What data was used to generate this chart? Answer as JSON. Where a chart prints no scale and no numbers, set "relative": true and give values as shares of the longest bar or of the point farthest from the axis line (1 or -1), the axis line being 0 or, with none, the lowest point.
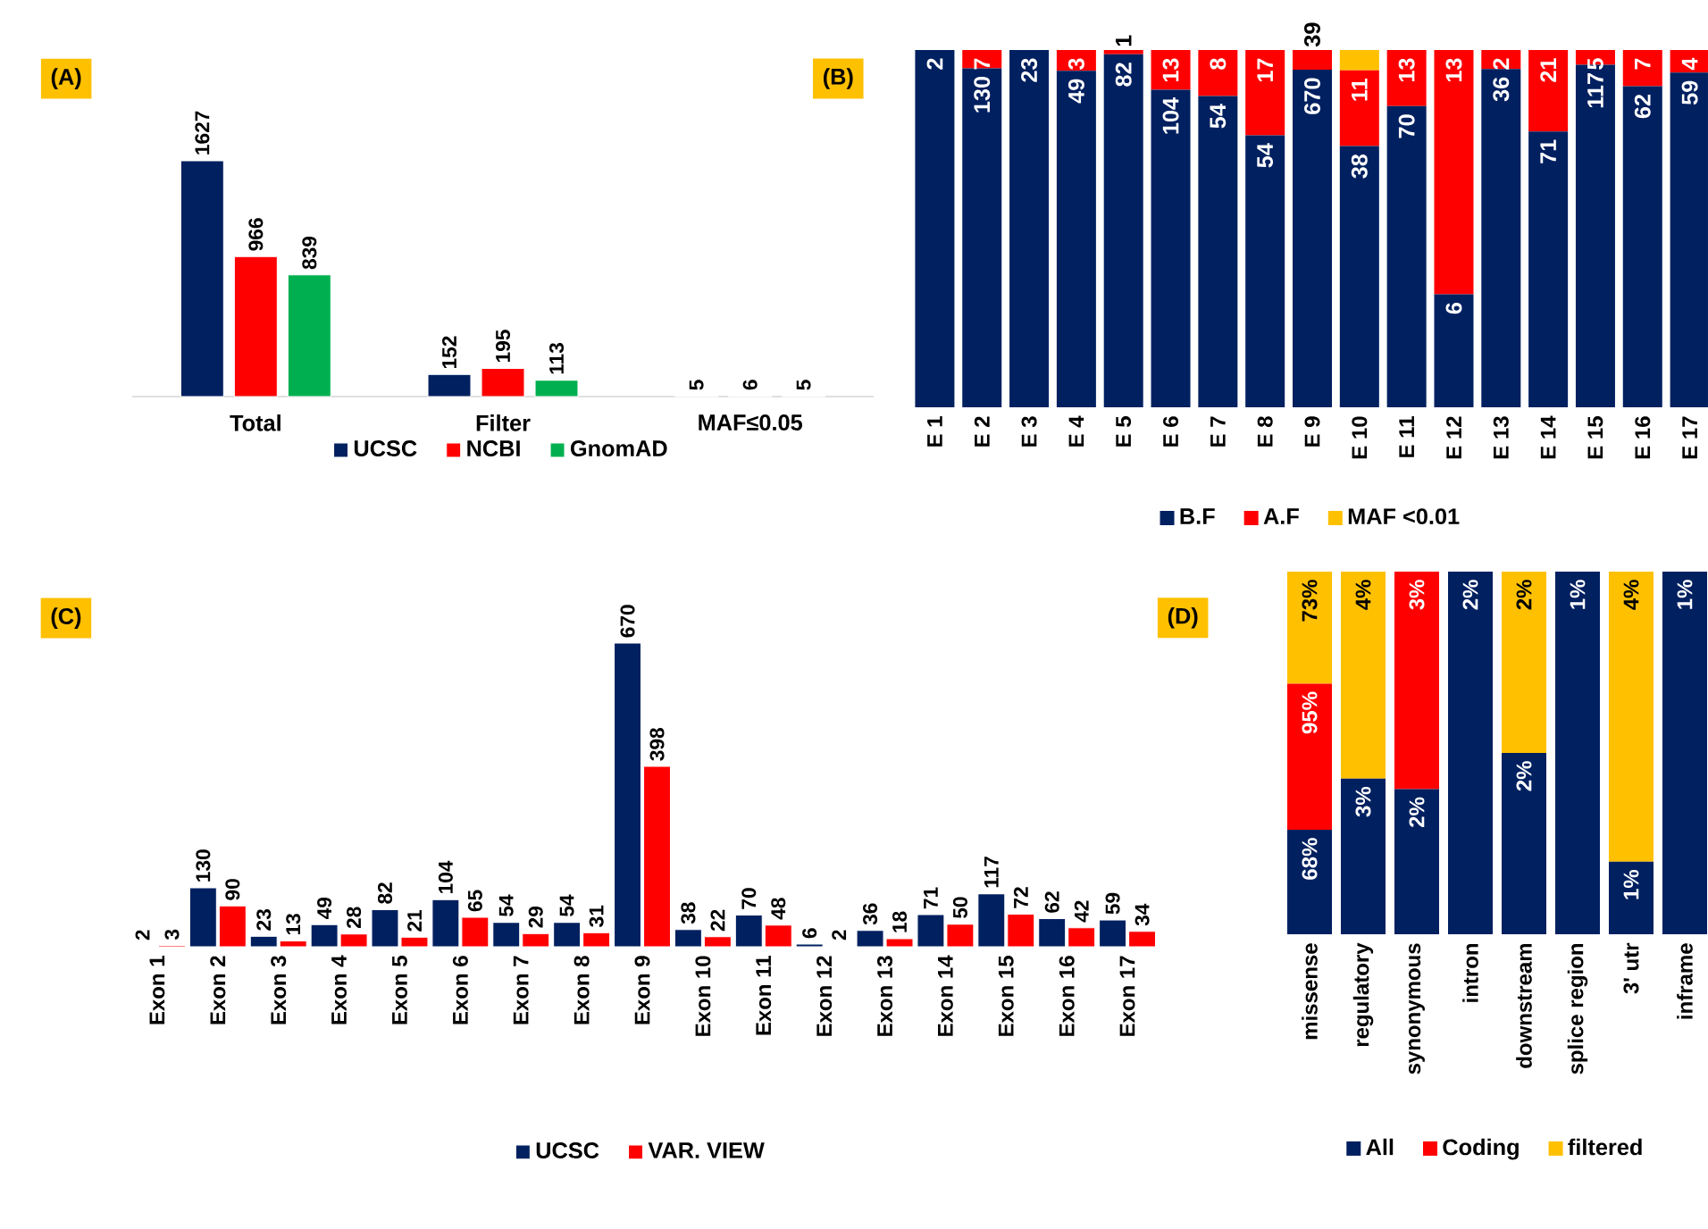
{
  "chart_data": [
    {
      "type": "bar",
      "title": "(A)",
      "categories": [
        "Total",
        "Filter",
        "MAF≤0.05"
      ],
      "data_labels": true,
      "legend": "bottom",
      "series": [
        {
          "name": "UCSC",
          "color": "#002060",
          "values": [
            1627,
            152,
            5
          ]
        },
        {
          "name": "NCBI",
          "color": "#ff0000",
          "values": [
            966,
            195,
            6
          ]
        },
        {
          "name": "GnomAD",
          "color": "#00b050",
          "values": [
            839,
            113,
            5
          ]
        }
      ]
    },
    {
      "type": "bar",
      "title": "(B)",
      "stacked": true,
      "relative": true,
      "legend": "bottom",
      "categories": [
        "E 1",
        "E 2",
        "E 3",
        "E 4",
        "E 5",
        "E 6",
        "E 7",
        "E 8",
        "E 9",
        "E 10",
        "E 11",
        "E 12",
        "E 13",
        "E 14",
        "E 15",
        "E 16",
        "E 17"
      ],
      "series": [
        {
          "name": "B.F",
          "color": "#002060",
          "values": [
            1,
            0.949,
            1,
            0.942,
            0.988,
            0.889,
            0.871,
            0.761,
            0.945,
            0.731,
            0.843,
            0.316,
            0.947,
            0.772,
            0.959,
            0.899,
            0.937
          ]
        },
        {
          "name": "A.F",
          "color": "#ff0000",
          "values": [
            null,
            0.051,
            null,
            0.058,
            0.012,
            0.111,
            0.129,
            0.239,
            0.055,
            0.212,
            0.157,
            0.684,
            0.053,
            0.228,
            0.041,
            0.101,
            0.063
          ]
        },
        {
          "name": "MAF <0.01",
          "color": "#ffc000",
          "values": [
            null,
            null,
            null,
            null,
            null,
            null,
            null,
            null,
            null,
            0.057,
            null,
            null,
            null,
            null,
            null,
            null,
            null
          ]
        }
      ],
      "annotations": [
        {
          "text": "2",
          "x": "E 1",
          "y": 1
        },
        {
          "text": "130",
          "x": "E 2",
          "y": 0.949
        },
        {
          "text": "7",
          "x": "E 2",
          "y": 1
        },
        {
          "text": "23",
          "x": "E 3",
          "y": 1
        },
        {
          "text": "49",
          "x": "E 4",
          "y": 0.942
        },
        {
          "text": "3",
          "x": "E 4",
          "y": 1
        },
        {
          "text": "82",
          "x": "E 5",
          "y": 0.988
        },
        {
          "text": "1",
          "x": "E 5",
          "y": 1
        },
        {
          "text": "104",
          "x": "E 6",
          "y": 0.889
        },
        {
          "text": "13",
          "x": "E 6",
          "y": 1
        },
        {
          "text": "54",
          "x": "E 7",
          "y": 0.871
        },
        {
          "text": "8",
          "x": "E 7",
          "y": 1
        },
        {
          "text": "54",
          "x": "E 8",
          "y": 0.761
        },
        {
          "text": "17",
          "x": "E 8",
          "y": 1
        },
        {
          "text": "670",
          "x": "E 9",
          "y": 0.945
        },
        {
          "text": "39",
          "x": "E 9",
          "y": 1
        },
        {
          "text": "38",
          "x": "E 10",
          "y": 0.731
        },
        {
          "text": "11",
          "x": "E 10",
          "y": 0.943
        },
        {
          "text": "70",
          "x": "E 11",
          "y": 0.843
        },
        {
          "text": "13",
          "x": "E 11",
          "y": 1
        },
        {
          "text": "6",
          "x": "E 12",
          "y": 0.316
        },
        {
          "text": "13",
          "x": "E 12",
          "y": 1
        },
        {
          "text": "36",
          "x": "E 13",
          "y": 0.947
        },
        {
          "text": "2",
          "x": "E 13",
          "y": 1
        },
        {
          "text": "71",
          "x": "E 14",
          "y": 0.772
        },
        {
          "text": "21",
          "x": "E 14",
          "y": 1
        },
        {
          "text": "117",
          "x": "E 15",
          "y": 0.959
        },
        {
          "text": "5",
          "x": "E 15",
          "y": 1
        },
        {
          "text": "62",
          "x": "E 16",
          "y": 0.899
        },
        {
          "text": "7",
          "x": "E 16",
          "y": 1
        },
        {
          "text": "59",
          "x": "E 17",
          "y": 0.937
        },
        {
          "text": "4",
          "x": "E 17",
          "y": 1
        }
      ]
    },
    {
      "type": "bar",
      "title": "(C)",
      "data_labels": true,
      "legend": "bottom",
      "categories": [
        "Exon 1",
        "Exon 2",
        "Exon 3",
        "Exon 4",
        "Exon 5",
        "Exon 6",
        "Exon 7",
        "Exon 8",
        "Exon 9",
        "Exon 10",
        "Exon 11",
        "Exon 12",
        "Exon 13",
        "Exon 14",
        "Exon 15",
        "Exon 16",
        "Exon 17"
      ],
      "series": [
        {
          "name": "UCSC",
          "color": "#002060",
          "values": [
            2,
            130,
            23,
            49,
            82,
            104,
            54,
            54,
            670,
            38,
            70,
            6,
            36,
            71,
            117,
            62,
            59
          ]
        },
        {
          "name": "VAR. VIEW",
          "color": "#ff0000",
          "values": [
            3,
            90,
            13,
            28,
            21,
            65,
            29,
            31,
            398,
            22,
            48,
            2,
            18,
            50,
            72,
            42,
            34
          ]
        }
      ]
    },
    {
      "type": "bar",
      "title": "(D)",
      "stacked": true,
      "relative": true,
      "legend": "bottom",
      "categories": [
        "missense",
        "regulatory",
        "synonymous",
        "intron",
        "downstream",
        "splice region",
        "3' utr",
        "inframe"
      ],
      "series": [
        {
          "name": "All",
          "color": "#002060",
          "values": [
            0.288,
            0.429,
            0.4,
            1,
            0.5,
            1,
            0.2,
            1
          ]
        },
        {
          "name": "Coding",
          "color": "#ff0000",
          "values": [
            0.403,
            null,
            0.6,
            null,
            null,
            null,
            null,
            null
          ]
        },
        {
          "name": "filtered",
          "color": "#ffc000",
          "values": [
            0.309,
            0.571,
            null,
            null,
            0.5,
            null,
            0.8,
            null
          ]
        }
      ],
      "annotations": [
        {
          "text": "68%",
          "x": "missense",
          "y": 0.288
        },
        {
          "text": "95%",
          "x": "missense",
          "y": 0.691
        },
        {
          "text": "73%",
          "x": "missense",
          "y": 1
        },
        {
          "text": "3%",
          "x": "regulatory",
          "y": 0.429
        },
        {
          "text": "4%",
          "x": "regulatory",
          "y": 1
        },
        {
          "text": "2%",
          "x": "synonymous",
          "y": 0.4
        },
        {
          "text": "3%",
          "x": "synonymous",
          "y": 1
        },
        {
          "text": "2%",
          "x": "intron",
          "y": 1
        },
        {
          "text": "2%",
          "x": "downstream",
          "y": 0.5
        },
        {
          "text": "2%",
          "x": "downstream",
          "y": 1
        },
        {
          "text": "1%",
          "x": "splice region",
          "y": 1
        },
        {
          "text": "1%",
          "x": "3' utr",
          "y": 0.2
        },
        {
          "text": "4%",
          "x": "3' utr",
          "y": 1
        },
        {
          "text": "1%",
          "x": "inframe",
          "y": 1
        }
      ]
    }
  ]
}
